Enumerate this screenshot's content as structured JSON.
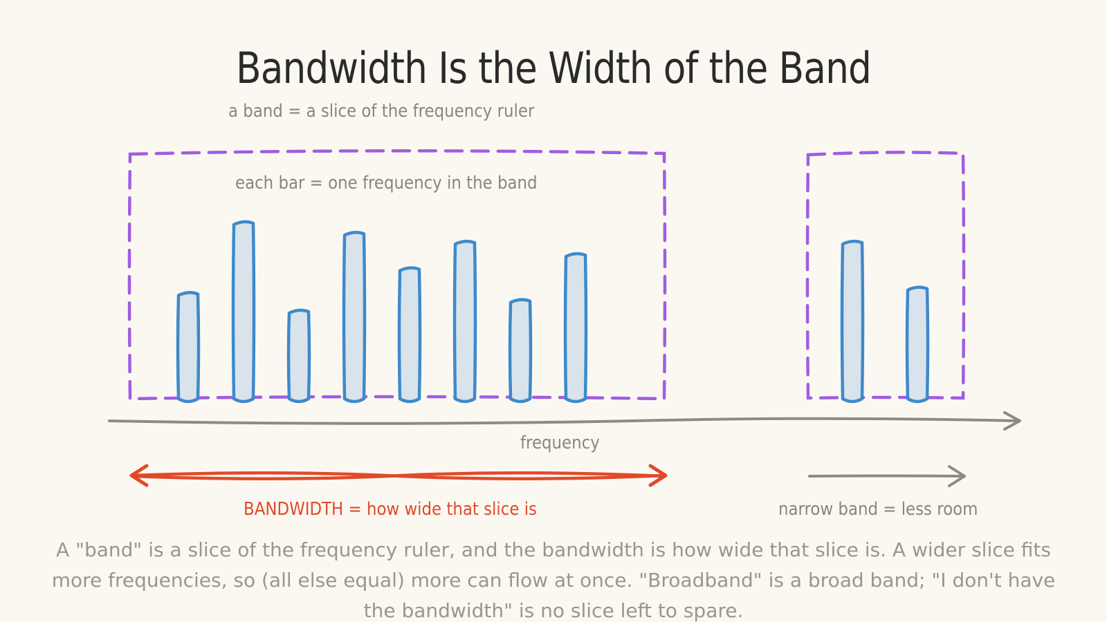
{
  "title": "Bandwidth Is the Width of the Band",
  "notes": {
    "band_definition": "a band = a slice of the frequency ruler",
    "bar_meaning": "each bar = one frequency in the band",
    "axis_label": "frequency",
    "bandwidth_label": "BANDWIDTH = how wide that slice is",
    "narrow_label": "narrow band = less room"
  },
  "caption": "A \"band\" is a slice of the frequency ruler, and the bandwidth is how wide that slice is. A wider slice fits more frequencies, so (all else equal) more can flow at once. \"Broadband\" is a broad band; \"I don't have the bandwidth\" is no slice left to spare.",
  "colors": {
    "band_outline": "#a05de0",
    "bar_stroke": "#3d8acb",
    "bar_fill": "#d9e3ec",
    "axis": "#8f8a80",
    "bandwidth_arrow": "#e04a2a",
    "narrow_arrow": "#8f8a80"
  },
  "wide_band_bars": [
    0.6,
    1.0,
    0.5,
    0.94,
    0.74,
    0.89,
    0.56,
    0.82
  ],
  "narrow_band_bars": [
    0.89,
    0.63
  ]
}
